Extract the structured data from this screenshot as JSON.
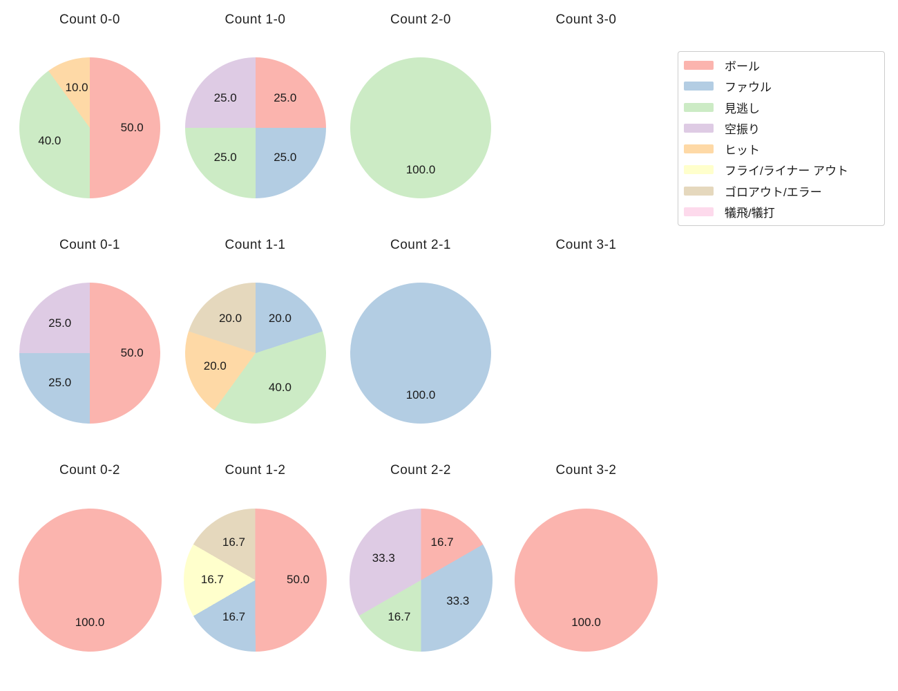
{
  "figure": {
    "background": "#ffffff",
    "text_color": "#1a1a1a"
  },
  "legend": {
    "position": "top-right",
    "items": [
      {
        "label": "ボール",
        "color": "#fbb4ae"
      },
      {
        "label": "ファウル",
        "color": "#b3cde3"
      },
      {
        "label": "見逃し",
        "color": "#ccebc5"
      },
      {
        "label": "空振り",
        "color": "#decbe4"
      },
      {
        "label": "ヒット",
        "color": "#fed9a6"
      },
      {
        "label": "フライ/ライナー アウト",
        "color": "#ffffcc"
      },
      {
        "label": "ゴロアウト/エラー",
        "color": "#e5d8bd"
      },
      {
        "label": "犠飛/犠打",
        "color": "#fddaec"
      }
    ]
  },
  "chart_data": [
    {
      "type": "pie",
      "title": "Count 0-0",
      "start_angle": "top",
      "direction": "clockwise",
      "slices": [
        {
          "category": "ボール",
          "value": 50.0
        },
        {
          "category": "見逃し",
          "value": 40.0
        },
        {
          "category": "ヒット",
          "value": 10.0
        }
      ]
    },
    {
      "type": "pie",
      "title": "Count 1-0",
      "start_angle": "top",
      "direction": "clockwise",
      "slices": [
        {
          "category": "ボール",
          "value": 25.0
        },
        {
          "category": "ファウル",
          "value": 25.0
        },
        {
          "category": "見逃し",
          "value": 25.0
        },
        {
          "category": "空振り",
          "value": 25.0
        }
      ]
    },
    {
      "type": "pie",
      "title": "Count 2-0",
      "start_angle": "top",
      "direction": "clockwise",
      "slices": [
        {
          "category": "見逃し",
          "value": 100.0
        }
      ]
    },
    {
      "type": "pie",
      "title": "Count 3-0",
      "start_angle": "top",
      "direction": "clockwise",
      "slices": []
    },
    {
      "type": "pie",
      "title": "Count 0-1",
      "start_angle": "top",
      "direction": "clockwise",
      "slices": [
        {
          "category": "ボール",
          "value": 50.0
        },
        {
          "category": "ファウル",
          "value": 25.0
        },
        {
          "category": "空振り",
          "value": 25.0
        }
      ]
    },
    {
      "type": "pie",
      "title": "Count 1-1",
      "start_angle": "top",
      "direction": "clockwise",
      "slices": [
        {
          "category": "ファウル",
          "value": 20.0
        },
        {
          "category": "見逃し",
          "value": 40.0
        },
        {
          "category": "ヒット",
          "value": 20.0
        },
        {
          "category": "ゴロアウト/エラー",
          "value": 20.0
        }
      ]
    },
    {
      "type": "pie",
      "title": "Count 2-1",
      "start_angle": "top",
      "direction": "clockwise",
      "slices": [
        {
          "category": "ファウル",
          "value": 100.0
        }
      ]
    },
    {
      "type": "pie",
      "title": "Count 3-1",
      "start_angle": "top",
      "direction": "clockwise",
      "slices": []
    },
    {
      "type": "pie",
      "title": "Count 0-2",
      "start_angle": "top",
      "direction": "clockwise",
      "slices": [
        {
          "category": "ボール",
          "value": 100.0
        }
      ]
    },
    {
      "type": "pie",
      "title": "Count 1-2",
      "start_angle": "top",
      "direction": "clockwise",
      "slices": [
        {
          "category": "ボール",
          "value": 50.0
        },
        {
          "category": "ファウル",
          "value": 16.7
        },
        {
          "category": "フライ/ライナー アウト",
          "value": 16.7
        },
        {
          "category": "ゴロアウト/エラー",
          "value": 16.7
        }
      ]
    },
    {
      "type": "pie",
      "title": "Count 2-2",
      "start_angle": "top",
      "direction": "clockwise",
      "slices": [
        {
          "category": "ボール",
          "value": 16.7
        },
        {
          "category": "ファウル",
          "value": 33.3
        },
        {
          "category": "見逃し",
          "value": 16.7
        },
        {
          "category": "空振り",
          "value": 33.3
        }
      ]
    },
    {
      "type": "pie",
      "title": "Count 3-2",
      "start_angle": "top",
      "direction": "clockwise",
      "slices": [
        {
          "category": "ボール",
          "value": 100.0
        }
      ]
    }
  ]
}
